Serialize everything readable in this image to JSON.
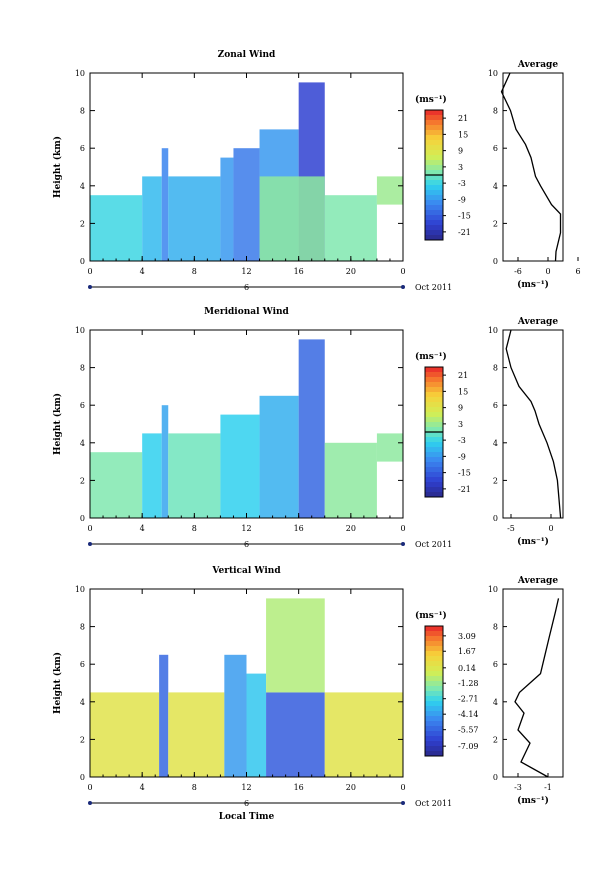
{
  "chart_data": [
    {
      "type": "heatmap",
      "title": "Zonal Wind",
      "ylabel": "Height (km)",
      "xlabel": "",
      "xlim": [
        0,
        24
      ],
      "ylim": [
        0,
        10
      ],
      "x_ticks": [
        "0",
        "4",
        "8",
        "12",
        "16",
        "20",
        "0"
      ],
      "y_ticks": [
        "0",
        "2",
        "4",
        "6",
        "8",
        "10"
      ],
      "date_marker": "6",
      "date_label": "Oct 2011",
      "colorbar": {
        "unit": "(ms⁻¹)",
        "range": [
          -24,
          24
        ],
        "ticks": [
          21,
          15,
          9,
          3,
          -3,
          -9,
          -15,
          -21
        ],
        "tick_labels": [
          "21",
          "15",
          "9",
          "3",
          "-3",
          "-9",
          "-15",
          "-21"
        ],
        "zero_line": 0
      },
      "field": {
        "cells": [
          {
            "x": [
              0,
              4
            ],
            "y": [
              0,
              3.5
            ],
            "value": -3
          },
          {
            "x": [
              4,
              5.5
            ],
            "y": [
              0,
              4.5
            ],
            "value": -6
          },
          {
            "x": [
              5.5,
              6
            ],
            "y": [
              0,
              6
            ],
            "value": -11
          },
          {
            "x": [
              6,
              10
            ],
            "y": [
              0,
              4.5
            ],
            "value": -7
          },
          {
            "x": [
              10,
              11
            ],
            "y": [
              0,
              5.5
            ],
            "value": -9
          },
          {
            "x": [
              11,
              13
            ],
            "y": [
              0,
              6
            ],
            "value": -12
          },
          {
            "x": [
              13,
              16
            ],
            "y": [
              0,
              7
            ],
            "value": -9
          },
          {
            "x": [
              16,
              18
            ],
            "y": [
              0,
              9.5
            ],
            "value": -18
          },
          {
            "x": [
              13,
              18
            ],
            "y": [
              0,
              4.5
            ],
            "value": 2
          },
          {
            "x": [
              18,
              22
            ],
            "y": [
              0,
              3.5
            ],
            "value": 1
          },
          {
            "x": [
              22,
              24
            ],
            "y": [
              3,
              4.5
            ],
            "value": 3
          }
        ]
      },
      "average_profile": {
        "title": "Average",
        "xlabel": "(ms⁻¹)",
        "xlim": [
          -9,
          3
        ],
        "x_ticks": [
          "-6",
          "0",
          "6"
        ],
        "x_tick_values": [
          -6,
          0,
          6
        ],
        "y_ticks": [
          "0",
          "2",
          "4",
          "6",
          "8",
          "10"
        ],
        "x": [
          1.5,
          1.6,
          2.5,
          2.5,
          0.7,
          -1.5,
          -2.5,
          -3.4,
          -4.5,
          -6.4,
          -7.5,
          -9.3,
          -7.6
        ],
        "y": [
          0,
          0.5,
          1.5,
          2.5,
          3.0,
          4.0,
          4.5,
          5.5,
          6.2,
          7.0,
          8.0,
          9.0,
          10.0
        ]
      }
    },
    {
      "type": "heatmap",
      "title": "Meridional Wind",
      "ylabel": "Height (km)",
      "xlabel": "",
      "xlim": [
        0,
        24
      ],
      "ylim": [
        0,
        10
      ],
      "x_ticks": [
        "0",
        "4",
        "8",
        "12",
        "16",
        "20",
        "0"
      ],
      "y_ticks": [
        "0",
        "2",
        "4",
        "6",
        "8",
        "10"
      ],
      "date_marker": "6",
      "date_label": "Oct 2011",
      "colorbar": {
        "unit": "(ms⁻¹)",
        "range": [
          -24,
          24
        ],
        "ticks": [
          21,
          15,
          9,
          3,
          -3,
          -9,
          -15,
          -21
        ],
        "tick_labels": [
          "21",
          "15",
          "9",
          "3",
          "-3",
          "-9",
          "-15",
          "-21"
        ],
        "zero_line": 0
      },
      "field": {
        "cells": [
          {
            "x": [
              0,
              4
            ],
            "y": [
              0,
              3.5
            ],
            "value": 1
          },
          {
            "x": [
              4,
              5.5
            ],
            "y": [
              0,
              4.5
            ],
            "value": -4
          },
          {
            "x": [
              5.5,
              6
            ],
            "y": [
              0,
              6
            ],
            "value": -8
          },
          {
            "x": [
              6,
              10
            ],
            "y": [
              0,
              4.5
            ],
            "value": 0
          },
          {
            "x": [
              10,
              13
            ],
            "y": [
              0,
              5.5
            ],
            "value": -4
          },
          {
            "x": [
              13,
              16
            ],
            "y": [
              0,
              6.5
            ],
            "value": -7
          },
          {
            "x": [
              16,
              18
            ],
            "y": [
              0,
              9.5
            ],
            "value": -14
          },
          {
            "x": [
              18,
              22
            ],
            "y": [
              0,
              4
            ],
            "value": 2
          },
          {
            "x": [
              22,
              24
            ],
            "y": [
              3,
              4.5
            ],
            "value": 2
          }
        ]
      },
      "average_profile": {
        "title": "Average",
        "xlabel": "(ms⁻¹)",
        "xlim": [
          -6,
          1.5
        ],
        "x_ticks": [
          "-5",
          "0"
        ],
        "x_tick_values": [
          -5,
          0
        ],
        "y_ticks": [
          "0",
          "2",
          "4",
          "6",
          "8",
          "10"
        ],
        "x": [
          1.2,
          1.0,
          0.8,
          0.3,
          -0.5,
          -1.5,
          -2.0,
          -2.5,
          -4.0,
          -5.0,
          -5.6,
          -5.0
        ],
        "y": [
          0,
          1.0,
          2.0,
          3.0,
          4.0,
          5.0,
          5.7,
          6.2,
          7.0,
          8.0,
          9.0,
          10.0
        ]
      }
    },
    {
      "type": "heatmap",
      "title": "Vertical Wind",
      "ylabel": "Height (km)",
      "xlabel": "Local Time",
      "xlim": [
        0,
        24
      ],
      "ylim": [
        0,
        10
      ],
      "x_ticks": [
        "0",
        "4",
        "8",
        "12",
        "16",
        "20",
        "0"
      ],
      "y_ticks": [
        "0",
        "2",
        "4",
        "6",
        "8",
        "10"
      ],
      "date_marker": "6",
      "date_label": "Oct 2011",
      "colorbar": {
        "unit": "(ms⁻¹)",
        "range": [
          -8,
          4
        ],
        "ticks": [
          3.09,
          1.67,
          0.14,
          -1.28,
          -2.71,
          -4.14,
          -5.57,
          -7.09
        ],
        "tick_labels": [
          "3.09",
          "1.67",
          "0.14",
          "-1.28",
          "-2.71",
          "-4.14",
          "-5.57",
          "-7.09"
        ],
        "zero_line": null
      },
      "field": {
        "cells": [
          {
            "x": [
              0,
              5.3
            ],
            "y": [
              0,
              4.5
            ],
            "value": 0.3
          },
          {
            "x": [
              5.3,
              6
            ],
            "y": [
              0,
              6.5
            ],
            "value": -5.5
          },
          {
            "x": [
              6,
              10.3
            ],
            "y": [
              0,
              4.5
            ],
            "value": 0.3
          },
          {
            "x": [
              10.3,
              12
            ],
            "y": [
              0,
              6.5
            ],
            "value": -4.2
          },
          {
            "x": [
              12,
              13.5
            ],
            "y": [
              0,
              5.5
            ],
            "value": -3.2
          },
          {
            "x": [
              13.5,
              18
            ],
            "y": [
              0,
              4.5
            ],
            "value": -5.8
          },
          {
            "x": [
              13.5,
              18
            ],
            "y": [
              4.5,
              9.5
            ],
            "value": -0.9
          },
          {
            "x": [
              18,
              24
            ],
            "y": [
              0,
              4.5
            ],
            "value": 0.3
          }
        ]
      },
      "average_profile": {
        "title": "Average",
        "xlabel": "(ms⁻¹)",
        "xlim": [
          -4,
          0
        ],
        "x_ticks": [
          "-3",
          "-1"
        ],
        "x_tick_values": [
          -3,
          -1
        ],
        "y_ticks": [
          "0",
          "2",
          "4",
          "6",
          "8",
          "10"
        ],
        "x": [
          -1.0,
          -2.8,
          -2.2,
          -3.0,
          -2.6,
          -3.2,
          -2.9,
          -1.5,
          -1.2,
          -0.9,
          -0.5,
          -0.3
        ],
        "y": [
          0,
          0.8,
          1.8,
          2.5,
          3.4,
          4.0,
          4.5,
          5.5,
          6.5,
          7.5,
          8.8,
          9.5
        ]
      }
    }
  ]
}
